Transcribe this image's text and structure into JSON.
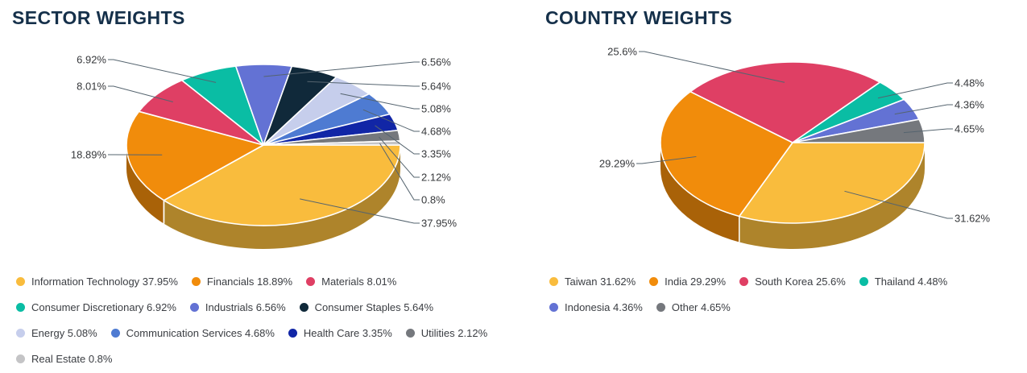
{
  "theme": {
    "background": "#ffffff",
    "title_color": "#15304A",
    "label_color": "#36383B",
    "connector_color": "#55646F"
  },
  "chart_data": [
    {
      "type": "pie",
      "style": "3d",
      "title": "SECTOR WEIGHTS",
      "legend_position": "bottom",
      "categories": [
        "Information Technology",
        "Financials",
        "Materials",
        "Consumer Discretionary",
        "Industrials",
        "Consumer Staples",
        "Energy",
        "Communication Services",
        "Health Care",
        "Utilities",
        "Real Estate"
      ],
      "values": [
        37.95,
        18.89,
        8.01,
        6.92,
        6.56,
        5.64,
        5.08,
        4.68,
        3.35,
        2.12,
        0.8
      ],
      "colors": [
        "#F9BC3D",
        "#F18C0B",
        "#DF3F64",
        "#0ABDA4",
        "#6372D4",
        "#10293A",
        "#C6CEEC",
        "#4E7BD2",
        "#1126A6",
        "#75787D",
        "#C4C4C6"
      ],
      "callout_texts": [
        "37.95%",
        "18.89%",
        "8.01%",
        "6.92%",
        "6.56%",
        "5.64%",
        "5.08%",
        "4.68%",
        "3.35%",
        "2.12%",
        "0.8%"
      ],
      "legend_labels": [
        "Information Technology 37.95%",
        "Financials 18.89%",
        "Materials 8.01%",
        "Consumer Discretionary 6.92%",
        "Industrials 6.56%",
        "Consumer Staples 5.64%",
        "Energy 5.08%",
        "Communication Services 4.68%",
        "Health Care 3.35%",
        "Utilities 2.12%",
        "Real Estate 0.8%"
      ]
    },
    {
      "type": "pie",
      "style": "3d",
      "title": "COUNTRY WEIGHTS",
      "legend_position": "bottom",
      "categories": [
        "Taiwan",
        "India",
        "South Korea",
        "Thailand",
        "Indonesia",
        "Other"
      ],
      "values": [
        31.62,
        29.29,
        25.6,
        4.48,
        4.36,
        4.65
      ],
      "colors": [
        "#F9BC3D",
        "#F18C0B",
        "#DF3F64",
        "#0ABDA4",
        "#6372D4",
        "#75787D"
      ],
      "callout_texts": [
        "31.62%",
        "29.29%",
        "25.6%",
        "4.48%",
        "4.36%",
        "4.65%"
      ],
      "legend_labels": [
        "Taiwan 31.62%",
        "India 29.29%",
        "South Korea 25.6%",
        "Thailand 4.48%",
        "Indonesia 4.36%",
        "Other 4.65%"
      ]
    }
  ]
}
